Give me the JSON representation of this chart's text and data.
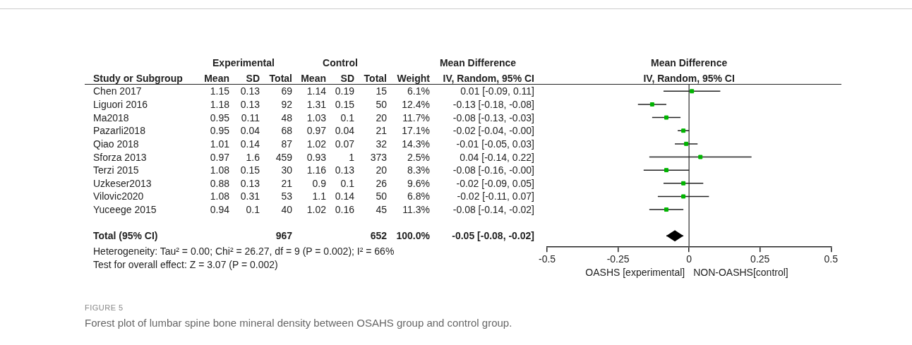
{
  "chart_data": [
    {
      "type": "other",
      "categories": [
        "Study or Subgroup",
        "Mean",
        "SD",
        "Total",
        "Mean",
        "SD",
        "Total",
        "Weight",
        "IV, Random, 95% CI"
      ],
      "cell_labels": [
        [
          "Chen 2017",
          "1.15",
          "0.13",
          "69",
          "1.14",
          "0.19",
          "15",
          "6.1%",
          "0.01 [-0.09, 0.11]"
        ],
        [
          "Liguori 2016",
          "1.18",
          "0.13",
          "92",
          "1.31",
          "0.15",
          "50",
          "12.4%",
          "-0.13 [-0.18, -0.08]"
        ],
        [
          "Ma2018",
          "0.95",
          "0.11",
          "48",
          "1.03",
          "0.1",
          "20",
          "11.7%",
          "-0.08 [-0.13, -0.03]"
        ],
        [
          "Pazarli2018",
          "0.95",
          "0.04",
          "68",
          "0.97",
          "0.04",
          "21",
          "17.1%",
          "-0.02 [-0.04, -0.00]"
        ],
        [
          "Qiao 2018",
          "1.01",
          "0.14",
          "87",
          "1.02",
          "0.07",
          "32",
          "14.3%",
          "-0.01 [-0.05, 0.03]"
        ],
        [
          "Sforza 2013",
          "0.97",
          "1.6",
          "459",
          "0.93",
          "1",
          "373",
          "2.5%",
          "0.04 [-0.14, 0.22]"
        ],
        [
          "Terzi 2015",
          "1.08",
          "0.15",
          "30",
          "1.16",
          "0.13",
          "20",
          "8.3%",
          "-0.08 [-0.16, -0.00]"
        ],
        [
          "Uzkeser2013",
          "0.88",
          "0.13",
          "21",
          "0.9",
          "0.1",
          "26",
          "9.6%",
          "-0.02 [-0.09, 0.05]"
        ],
        [
          "Vilovic2020",
          "1.08",
          "0.31",
          "53",
          "1.1",
          "0.14",
          "50",
          "6.8%",
          "-0.02 [-0.11, 0.07]"
        ],
        [
          "Yuceege 2015",
          "0.94",
          "0.1",
          "40",
          "1.02",
          "0.16",
          "45",
          "11.3%",
          "-0.08 [-0.14, -0.02]"
        ],
        null,
        [
          "Total (95% CI)",
          null,
          null,
          "967",
          null,
          null,
          "652",
          "100.0%",
          "-0.05 [-0.08, -0.02]"
        ]
      ],
      "annotations": [
        "Experimental",
        "Control",
        "Mean Difference",
        "Heterogeneity: Tau² = 0.00; Chi² = 26.27, df = 9 (P = 0.002); I² = 66%",
        "Test for overall effect: Z = 3.07 (P = 0.002)",
        "FIGURE 5",
        "Forest plot of lumbar spine bone mineral density between OSAHS group and control group."
      ]
    },
    {
      "type": "scatter",
      "orientation": "horizontal",
      "title": "Mean Difference",
      "subtitle": "IV, Random, 95% CI",
      "categories": [
        null,
        null,
        null,
        null,
        null,
        null,
        null,
        null,
        null,
        null,
        null,
        null
      ],
      "series": [
        {
          "color": "#00b400",
          "marker": "square",
          "values": [
            0.01,
            -0.13,
            -0.08,
            -0.02,
            -0.01,
            0.04,
            -0.08,
            -0.02,
            -0.02,
            -0.08,
            null,
            null
          ],
          "errors": [
            [
              -0.09,
              0.11
            ],
            [
              -0.18,
              -0.08
            ],
            [
              -0.13,
              -0.03
            ],
            [
              -0.04,
              -0.0
            ],
            [
              -0.05,
              0.03
            ],
            [
              -0.14,
              0.22
            ],
            [
              -0.16,
              -0.0
            ],
            [
              -0.09,
              0.05
            ],
            [
              -0.11,
              0.07
            ],
            [
              -0.14,
              -0.02
            ],
            null,
            null
          ]
        },
        {
          "color": "#000000",
          "marker": "diamond",
          "values": [
            null,
            null,
            null,
            null,
            null,
            null,
            null,
            null,
            null,
            null,
            null,
            -0.05
          ],
          "errors": [
            null,
            null,
            null,
            null,
            null,
            null,
            null,
            null,
            null,
            null,
            null,
            [
              -0.08,
              -0.02
            ]
          ]
        }
      ],
      "xlim": [
        -0.5,
        0.5
      ],
      "xticks": [
        -0.5,
        -0.25,
        0,
        0.25,
        0.5
      ],
      "ref_lines": [
        {
          "axis": "x",
          "value": 0,
          "color": "#555555"
        }
      ],
      "annotations": [
        "OASHS [experimental]",
        "NON-OASHS[control]"
      ]
    }
  ]
}
